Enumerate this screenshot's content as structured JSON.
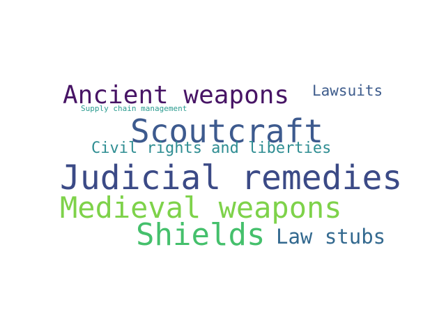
{
  "words": [
    {
      "text": "Ancient weapons",
      "color": "#471465"
    },
    {
      "text": "Lawsuits",
      "color": "#3e5c8c"
    },
    {
      "text": "Supply chain management",
      "color": "#2a9b8f"
    },
    {
      "text": "Scoutcraft",
      "color": "#3d5a8e"
    },
    {
      "text": "Civil rights and liberties",
      "color": "#2e8d92"
    },
    {
      "text": "Judicial remedies",
      "color": "#3b4a86"
    },
    {
      "text": "Medieval weapons",
      "color": "#7ed24a"
    },
    {
      "text": "Shields",
      "color": "#45c06c"
    },
    {
      "text": "Law stubs",
      "color": "#33698f"
    }
  ]
}
